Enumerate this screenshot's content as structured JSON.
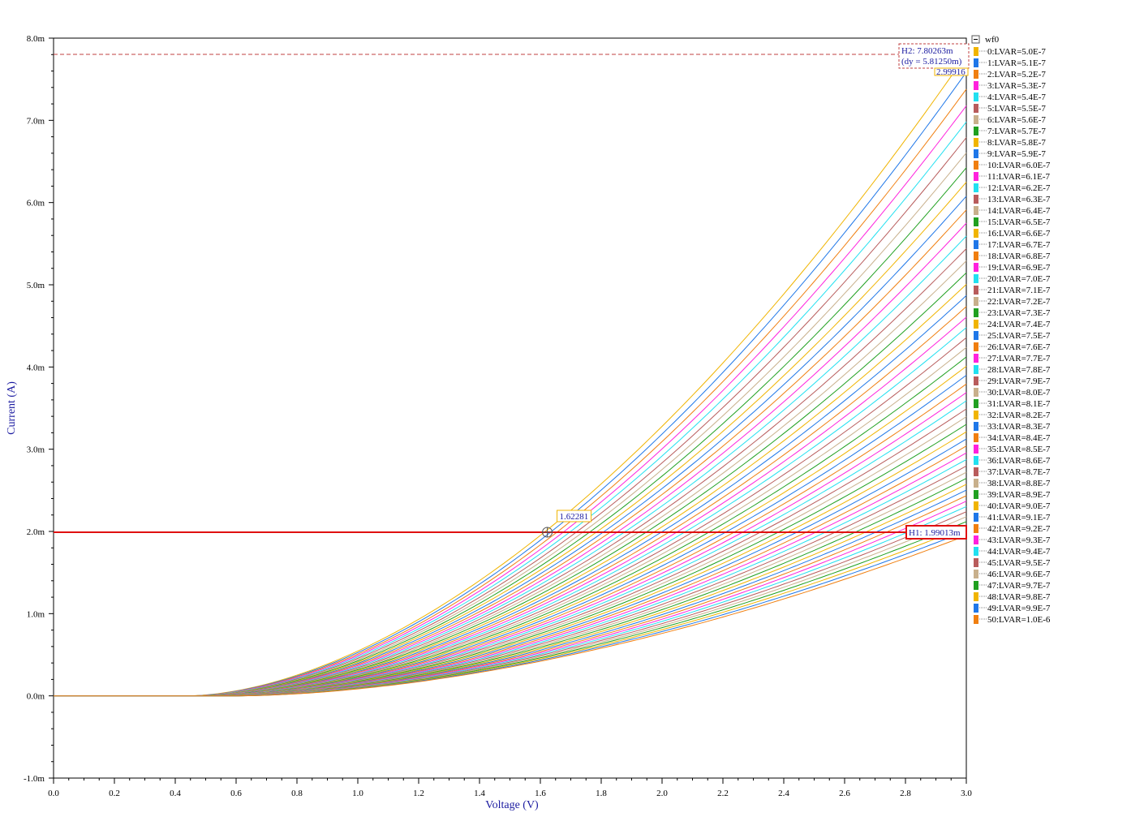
{
  "chart_data": {
    "type": "line",
    "xlabel": "Voltage (V)",
    "ylabel": "Current (A)",
    "xlim": [
      0.0,
      3.0
    ],
    "ylim": [
      -1.0,
      8.0
    ],
    "x_ticks": [
      "0.0",
      "0.2",
      "0.4",
      "0.6",
      "0.8",
      "1.0",
      "1.2",
      "1.4",
      "1.6",
      "1.8",
      "2.0",
      "2.2",
      "2.4",
      "2.6",
      "2.8",
      "3.0"
    ],
    "y_ticks": [
      {
        "v": -1.0,
        "label": "-1.0m"
      },
      {
        "v": 0.0,
        "label": "0.0m"
      },
      {
        "v": 1.0,
        "label": "1.0m"
      },
      {
        "v": 2.0,
        "label": "2.0m"
      },
      {
        "v": 3.0,
        "label": "3.0m"
      },
      {
        "v": 4.0,
        "label": "4.0m"
      },
      {
        "v": 5.0,
        "label": "5.0m"
      },
      {
        "v": 6.0,
        "label": "6.0m"
      },
      {
        "v": 7.0,
        "label": "7.0m"
      },
      {
        "v": 8.0,
        "label": "8.0m"
      }
    ],
    "y_unit": "mA",
    "legend_title": "wf0",
    "legend_position": "right",
    "series_model": {
      "description": "I = I_end * ((V - Vt)/(3.0 - Vt))^1.75 for V > Vt",
      "vt_first": 0.44,
      "vt_last": 0.6,
      "i_end_at_3V_first": 7.8,
      "i_end_at_3V_last": 1.95
    },
    "series": [
      {
        "name": "0:LVAR=5.0E-7"
      },
      {
        "name": "1:LVAR=5.1E-7"
      },
      {
        "name": "2:LVAR=5.2E-7"
      },
      {
        "name": "3:LVAR=5.3E-7"
      },
      {
        "name": "4:LVAR=5.4E-7"
      },
      {
        "name": "5:LVAR=5.5E-7"
      },
      {
        "name": "6:LVAR=5.6E-7"
      },
      {
        "name": "7:LVAR=5.7E-7"
      },
      {
        "name": "8:LVAR=5.8E-7"
      },
      {
        "name": "9:LVAR=5.9E-7"
      },
      {
        "name": "10:LVAR=6.0E-7"
      },
      {
        "name": "11:LVAR=6.1E-7"
      },
      {
        "name": "12:LVAR=6.2E-7"
      },
      {
        "name": "13:LVAR=6.3E-7"
      },
      {
        "name": "14:LVAR=6.4E-7"
      },
      {
        "name": "15:LVAR=6.5E-7"
      },
      {
        "name": "16:LVAR=6.6E-7"
      },
      {
        "name": "17:LVAR=6.7E-7"
      },
      {
        "name": "18:LVAR=6.8E-7"
      },
      {
        "name": "19:LVAR=6.9E-7"
      },
      {
        "name": "20:LVAR=7.0E-7"
      },
      {
        "name": "21:LVAR=7.1E-7"
      },
      {
        "name": "22:LVAR=7.2E-7"
      },
      {
        "name": "23:LVAR=7.3E-7"
      },
      {
        "name": "24:LVAR=7.4E-7"
      },
      {
        "name": "25:LVAR=7.5E-7"
      },
      {
        "name": "26:LVAR=7.6E-7"
      },
      {
        "name": "27:LVAR=7.7E-7"
      },
      {
        "name": "28:LVAR=7.8E-7"
      },
      {
        "name": "29:LVAR=7.9E-7"
      },
      {
        "name": "30:LVAR=8.0E-7"
      },
      {
        "name": "31:LVAR=8.1E-7"
      },
      {
        "name": "32:LVAR=8.2E-7"
      },
      {
        "name": "33:LVAR=8.3E-7"
      },
      {
        "name": "34:LVAR=8.4E-7"
      },
      {
        "name": "35:LVAR=8.5E-7"
      },
      {
        "name": "36:LVAR=8.6E-7"
      },
      {
        "name": "37:LVAR=8.7E-7"
      },
      {
        "name": "38:LVAR=8.8E-7"
      },
      {
        "name": "39:LVAR=8.9E-7"
      },
      {
        "name": "40:LVAR=9.0E-7"
      },
      {
        "name": "41:LVAR=9.1E-7"
      },
      {
        "name": "42:LVAR=9.2E-7"
      },
      {
        "name": "43:LVAR=9.3E-7"
      },
      {
        "name": "44:LVAR=9.4E-7"
      },
      {
        "name": "45:LVAR=9.5E-7"
      },
      {
        "name": "46:LVAR=9.6E-7"
      },
      {
        "name": "47:LVAR=9.7E-7"
      },
      {
        "name": "48:LVAR=9.8E-7"
      },
      {
        "name": "49:LVAR=9.9E-7"
      },
      {
        "name": "50:LVAR=1.0E-6"
      }
    ],
    "palette": [
      "#f0b400",
      "#1f77e8",
      "#f07f10",
      "#ff22dd",
      "#22e0f0",
      "#b85c5c",
      "#c8b08c",
      "#20a020"
    ],
    "markers": {
      "h1": {
        "label": "H1: 1.99013m",
        "value": 1.99013,
        "color": "#e01010"
      },
      "h2": {
        "label": "H2: 7.80263m",
        "dy_label": "(dy = 5.81250m)",
        "value": 7.80263,
        "color": "#c04040"
      },
      "point": {
        "label": "1.62281",
        "x": 1.62281,
        "y": 1.99013
      },
      "top_label": "2.99916"
    }
  }
}
